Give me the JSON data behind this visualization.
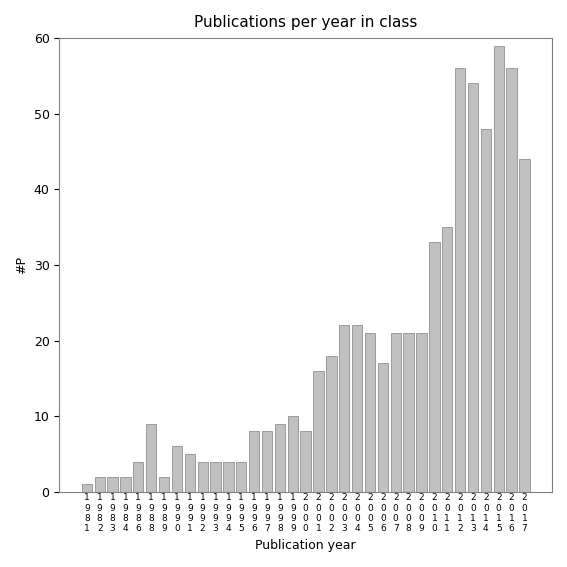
{
  "years": [
    "1981",
    "1982",
    "1983",
    "1984",
    "1986",
    "1988",
    "1989",
    "1990",
    "1991",
    "1992",
    "1993",
    "1994",
    "1995",
    "1996",
    "1997",
    "1998",
    "1999",
    "2000",
    "2001",
    "2002",
    "2003",
    "2004",
    "2005",
    "2006",
    "2007",
    "2008",
    "2009",
    "2010",
    "2011",
    "2012",
    "2013",
    "2014",
    "2015",
    "2016",
    "2017"
  ],
  "values": [
    1,
    2,
    2,
    2,
    4,
    9,
    2,
    6,
    5,
    4,
    4,
    4,
    4,
    8,
    8,
    9,
    10,
    8,
    16,
    18,
    22,
    22,
    21,
    17,
    21,
    21,
    21,
    33,
    35,
    56,
    54,
    48,
    59,
    56,
    44
  ],
  "title": "Publications per year in class",
  "xlabel": "Publication year",
  "ylabel": "#P",
  "bar_color": "#c0c0c0",
  "bar_edge_color": "#808080",
  "ylim": [
    0,
    60
  ],
  "yticks": [
    0,
    10,
    20,
    30,
    40,
    50,
    60
  ],
  "bg_color": "#ffffff"
}
